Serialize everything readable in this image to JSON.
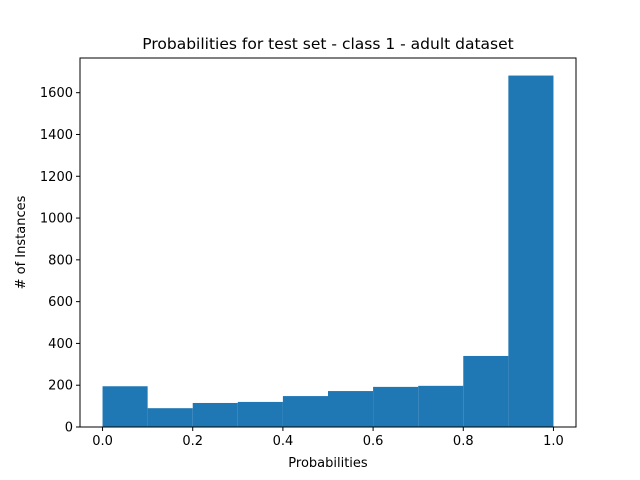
{
  "chart_data": {
    "type": "bar",
    "title": "Probabilities for test set - class 1 - adult dataset",
    "xlabel": "Probabilities",
    "ylabel": "# of Instances",
    "bins": [
      {
        "start": 0.0,
        "end": 0.1,
        "value": 195
      },
      {
        "start": 0.1,
        "end": 0.2,
        "value": 90
      },
      {
        "start": 0.2,
        "end": 0.3,
        "value": 115
      },
      {
        "start": 0.3,
        "end": 0.4,
        "value": 120
      },
      {
        "start": 0.4,
        "end": 0.5,
        "value": 148
      },
      {
        "start": 0.5,
        "end": 0.6,
        "value": 172
      },
      {
        "start": 0.6,
        "end": 0.7,
        "value": 192
      },
      {
        "start": 0.7,
        "end": 0.8,
        "value": 197
      },
      {
        "start": 0.8,
        "end": 0.9,
        "value": 340
      },
      {
        "start": 0.9,
        "end": 1.0,
        "value": 1682
      }
    ],
    "xlim": [
      -0.05,
      1.05
    ],
    "ylim": [
      0,
      1766
    ],
    "xticks": [
      {
        "value": 0.0,
        "label": "0.0"
      },
      {
        "value": 0.2,
        "label": "0.2"
      },
      {
        "value": 0.4,
        "label": "0.4"
      },
      {
        "value": 0.6,
        "label": "0.6"
      },
      {
        "value": 0.8,
        "label": "0.8"
      },
      {
        "value": 1.0,
        "label": "1.0"
      }
    ],
    "yticks": [
      {
        "value": 0,
        "label": "0"
      },
      {
        "value": 200,
        "label": "200"
      },
      {
        "value": 400,
        "label": "400"
      },
      {
        "value": 600,
        "label": "600"
      },
      {
        "value": 800,
        "label": "800"
      },
      {
        "value": 1000,
        "label": "1000"
      },
      {
        "value": 1200,
        "label": "1200"
      },
      {
        "value": 1400,
        "label": "1400"
      },
      {
        "value": 1600,
        "label": "1600"
      }
    ],
    "bar_color": "#1f77b4",
    "grid": false,
    "legend": "none"
  }
}
